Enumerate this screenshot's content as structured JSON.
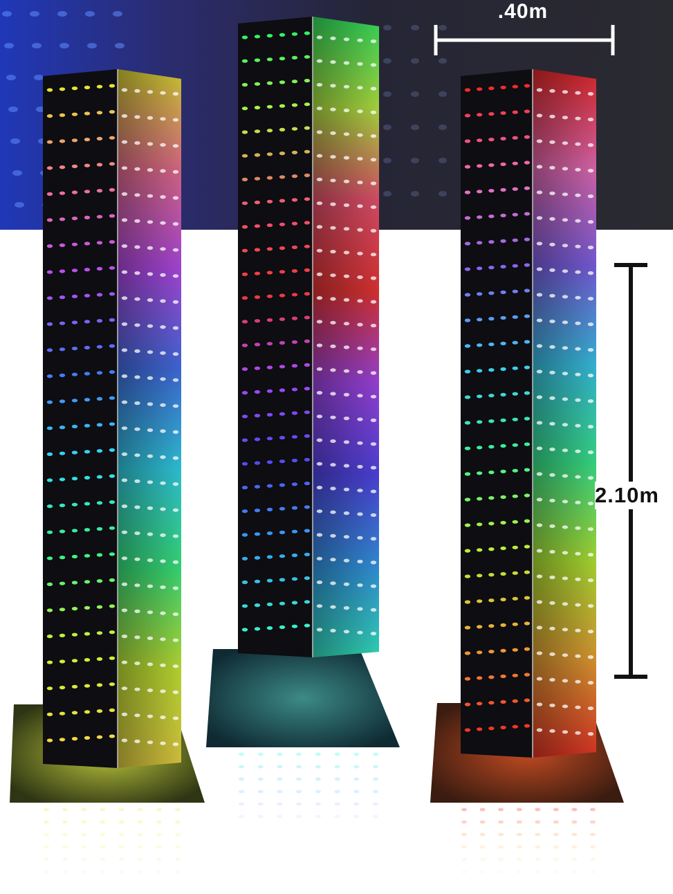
{
  "dimensions": {
    "width_label": ".40m",
    "height_label": "2.10m"
  },
  "towers": [
    {
      "name": "yellow-top-tower",
      "colors": [
        "#f6ef3a",
        "#ff7a9d",
        "#c451ff",
        "#4a7bff",
        "#37e6ff",
        "#3fff8a",
        "#d8ff3a",
        "#ffe54a"
      ]
    },
    {
      "name": "green-top-tower",
      "colors": [
        "#38ff6a",
        "#c8ff4a",
        "#ff5b7a",
        "#ff3a3a",
        "#b34dff",
        "#5a4cff",
        "#3aa8ff",
        "#3affd8"
      ]
    },
    {
      "name": "red-top-tower",
      "colors": [
        "#ff2d2d",
        "#ff77c8",
        "#8a6bff",
        "#3fd8ff",
        "#3fff9b",
        "#c4ff3a",
        "#ffb13a",
        "#ff3a2a"
      ]
    }
  ],
  "colors": {
    "background_top": "#26253a",
    "background_bottom": "#ffffff",
    "scale_bar": "#111111"
  }
}
